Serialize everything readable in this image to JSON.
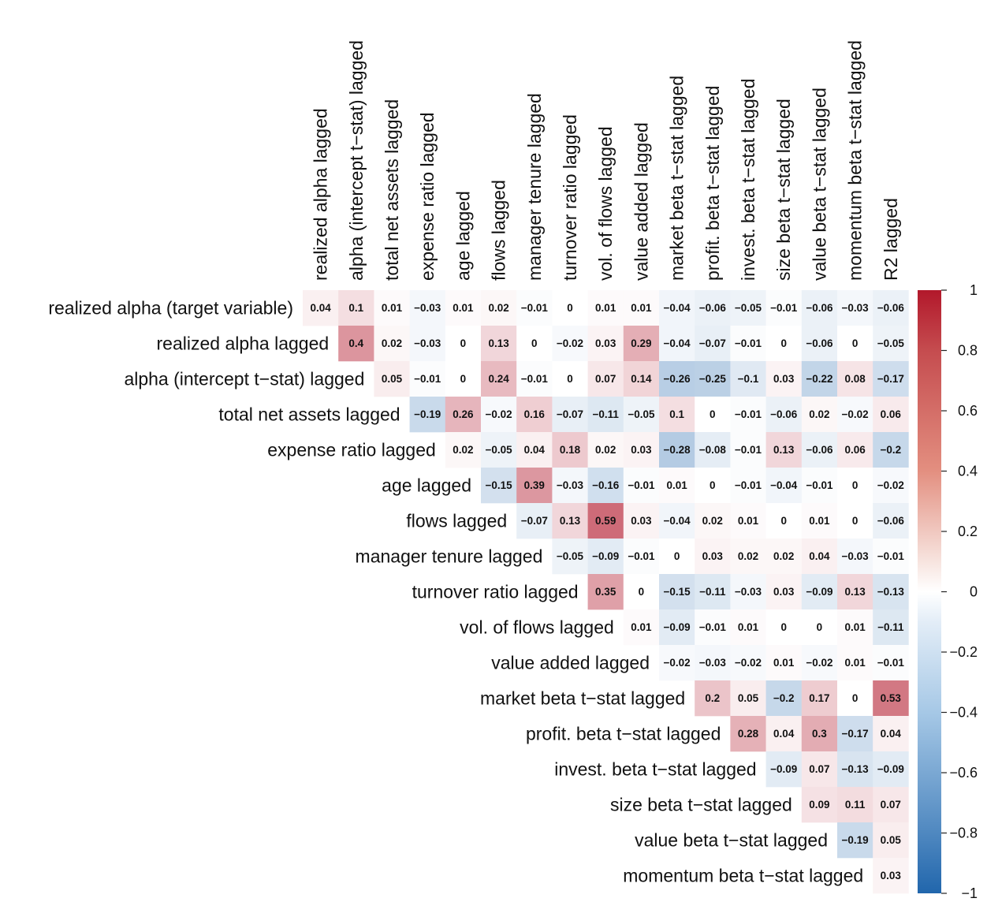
{
  "chart_data": {
    "type": "heatmap",
    "title": "",
    "layout": "upper-triangular correlation matrix",
    "rows": [
      "realized alpha (target variable)",
      "realized alpha lagged",
      "alpha (intercept t−stat) lagged",
      "total net assets lagged",
      "expense ratio lagged",
      "age lagged",
      "flows lagged",
      "manager tenure lagged",
      "turnover ratio lagged",
      "vol. of flows lagged",
      "value added lagged",
      "market beta t−stat lagged",
      "profit. beta t−stat lagged",
      "invest. beta t−stat lagged",
      "size beta t−stat lagged",
      "value beta t−stat lagged",
      "momentum beta t−stat lagged"
    ],
    "columns": [
      "realized alpha lagged",
      "alpha (intercept t−stat) lagged",
      "total net assets lagged",
      "expense ratio lagged",
      "age lagged",
      "flows lagged",
      "manager tenure lagged",
      "turnover ratio lagged",
      "vol. of flows lagged",
      "value added lagged",
      "market beta t−stat lagged",
      "profit. beta t−stat lagged",
      "invest. beta t−stat lagged",
      "size beta t−stat lagged",
      "value beta t−stat lagged",
      "momentum beta t−stat lagged",
      "R2 lagged"
    ],
    "values": [
      [
        0.04,
        0.1,
        0.01,
        -0.03,
        0.01,
        0.02,
        -0.01,
        0,
        0.01,
        0.01,
        -0.04,
        -0.06,
        -0.05,
        -0.01,
        -0.06,
        -0.03,
        -0.06
      ],
      [
        0.4,
        0.02,
        -0.03,
        0,
        0.13,
        0,
        -0.02,
        0.03,
        0.29,
        -0.04,
        -0.07,
        -0.01,
        0,
        -0.06,
        0,
        -0.05
      ],
      [
        0.05,
        -0.01,
        0,
        0.24,
        -0.01,
        0,
        0.07,
        0.14,
        -0.26,
        -0.25,
        -0.1,
        0.03,
        -0.22,
        0.08,
        -0.17
      ],
      [
        -0.19,
        0.26,
        -0.02,
        0.16,
        -0.07,
        -0.11,
        -0.05,
        0.1,
        0,
        -0.01,
        -0.06,
        0.02,
        -0.02,
        0.06
      ],
      [
        0.02,
        -0.05,
        0.04,
        0.18,
        0.02,
        0.03,
        -0.28,
        -0.08,
        -0.01,
        0.13,
        -0.06,
        0.06,
        -0.2
      ],
      [
        -0.15,
        0.39,
        -0.03,
        -0.16,
        -0.01,
        0.01,
        0,
        -0.01,
        -0.04,
        -0.01,
        0,
        -0.02
      ],
      [
        -0.07,
        0.13,
        0.59,
        0.03,
        -0.04,
        0.02,
        0.01,
        0,
        0.01,
        0,
        -0.06
      ],
      [
        -0.05,
        -0.09,
        -0.01,
        0,
        0.03,
        0.02,
        0.02,
        0.04,
        -0.03,
        -0.01
      ],
      [
        0.35,
        0,
        -0.15,
        -0.11,
        -0.03,
        0.03,
        -0.09,
        0.13,
        -0.13
      ],
      [
        0.01,
        -0.09,
        -0.01,
        0.01,
        0,
        0,
        0.01,
        -0.11
      ],
      [
        -0.02,
        -0.03,
        -0.02,
        0.01,
        -0.02,
        0.01,
        -0.01
      ],
      [
        0.2,
        0.05,
        -0.2,
        0.17,
        0,
        0.53
      ],
      [
        0.28,
        0.04,
        0.3,
        -0.17,
        0.04
      ],
      [
        -0.09,
        0.07,
        -0.13,
        -0.09
      ],
      [
        0.09,
        0.11,
        0.07
      ],
      [
        -0.19,
        0.05
      ],
      [
        0.03
      ]
    ],
    "value_labels": [
      [
        "0.04",
        "0.1",
        "0.01",
        "−0.03",
        "0.01",
        "0.02",
        "−0.01",
        "0",
        "0.01",
        "0.01",
        "−0.04",
        "−0.06",
        "−0.05",
        "−0.01",
        "−0.06",
        "−0.03",
        "−0.06"
      ],
      [
        "0.4",
        "0.02",
        "−0.03",
        "0",
        "0.13",
        "0",
        "−0.02",
        "0.03",
        "0.29",
        "−0.04",
        "−0.07",
        "−0.01",
        "0",
        "−0.06",
        "0",
        "−0.05"
      ],
      [
        "0.05",
        "−0.01",
        "0",
        "0.24",
        "−0.01",
        "0",
        "0.07",
        "0.14",
        "−0.26",
        "−0.25",
        "−0.1",
        "0.03",
        "−0.22",
        "0.08",
        "−0.17"
      ],
      [
        "−0.19",
        "0.26",
        "−0.02",
        "0.16",
        "−0.07",
        "−0.11",
        "−0.05",
        "0.1",
        "0",
        "−0.01",
        "−0.06",
        "0.02",
        "−0.02",
        "0.06"
      ],
      [
        "0.02",
        "−0.05",
        "0.04",
        "0.18",
        "0.02",
        "0.03",
        "−0.28",
        "−0.08",
        "−0.01",
        "0.13",
        "−0.06",
        "0.06",
        "−0.2"
      ],
      [
        "−0.15",
        "0.39",
        "−0.03",
        "−0.16",
        "−0.01",
        "0.01",
        "0",
        "−0.01",
        "−0.04",
        "−0.01",
        "0",
        "−0.02"
      ],
      [
        "−0.07",
        "0.13",
        "0.59",
        "0.03",
        "−0.04",
        "0.02",
        "0.01",
        "0",
        "0.01",
        "0",
        "−0.06"
      ],
      [
        "−0.05",
        "−0.09",
        "−0.01",
        "0",
        "0.03",
        "0.02",
        "0.02",
        "0.04",
        "−0.03",
        "−0.01"
      ],
      [
        "0.35",
        "0",
        "−0.15",
        "−0.11",
        "−0.03",
        "0.03",
        "−0.09",
        "0.13",
        "−0.13"
      ],
      [
        "0.01",
        "−0.09",
        "−0.01",
        "0.01",
        "0",
        "0",
        "0.01",
        "−0.11"
      ],
      [
        "−0.02",
        "−0.03",
        "−0.02",
        "0.01",
        "−0.02",
        "0.01",
        "−0.01"
      ],
      [
        "0.2",
        "0.05",
        "−0.2",
        "0.17",
        "0",
        "0.53"
      ],
      [
        "0.28",
        "0.04",
        "0.3",
        "−0.17",
        "0.04"
      ],
      [
        "−0.09",
        "0.07",
        "−0.13",
        "−0.09"
      ],
      [
        "0.09",
        "0.11",
        "0.07"
      ],
      [
        "−0.19",
        "0.05"
      ],
      [
        "0.03"
      ]
    ],
    "colorbar": {
      "range": [
        -1,
        1
      ],
      "ticks": [
        1,
        0.8,
        0.6,
        0.4,
        0.2,
        0,
        -0.2,
        -0.4,
        -0.6,
        -0.8,
        -1
      ],
      "tick_labels": [
        "1",
        "0.8",
        "0.6",
        "0.4",
        "0.2",
        "0",
        "−0.2",
        "−0.4",
        "−0.6",
        "−0.8",
        "−1"
      ],
      "colors": {
        "negative": "#2166ac",
        "zero": "#ffffff",
        "positive": "#b2182b"
      }
    },
    "grid": false,
    "legend": "right"
  }
}
